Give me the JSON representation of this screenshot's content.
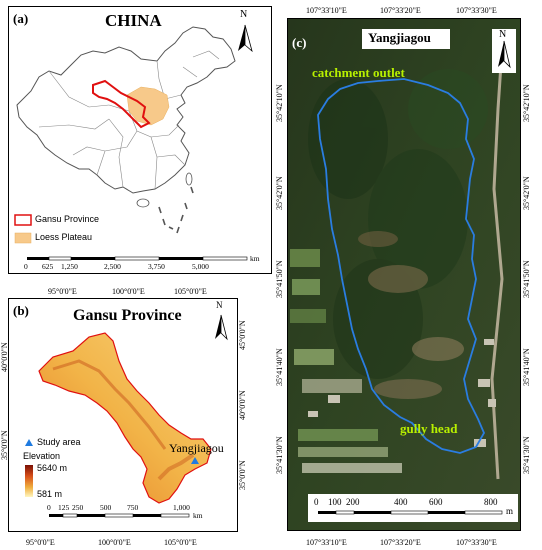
{
  "panel_a": {
    "label": "(a)",
    "title": "CHINA",
    "legend": [
      {
        "label": "Gansu Province",
        "symbol": "red-outline",
        "color": "#e01010"
      },
      {
        "label": "Loess Plateau",
        "symbol": "fill",
        "color": "#f7c98a"
      }
    ],
    "scalebar": {
      "ticks": [
        "0",
        "625",
        "1,250",
        "2,500",
        "3,750",
        "5,000"
      ],
      "unit": "km"
    },
    "north": "N"
  },
  "panel_b": {
    "label": "(b)",
    "title": "Gansu Province",
    "top_coords": [
      "95°0'0\"E",
      "100°0'0\"E",
      "105°0'0\"E"
    ],
    "bottom_coords": [
      "95°0'0\"E",
      "100°0'0\"E",
      "105°0'0\"E"
    ],
    "left_coords": [
      "40°0'0\"N",
      "35°0'0\"N"
    ],
    "right_coords": [
      "45°0'0\"N",
      "40°0'0\"N",
      "35°0'0\"N"
    ],
    "legend": {
      "study_area": "Study area",
      "elevation_title": "Elevation",
      "elevation_max": "5640 m",
      "elevation_min": "581 m"
    },
    "site_label": "Yangjiagou",
    "scalebar": {
      "ticks": [
        "0",
        "125",
        "250",
        "500",
        "750",
        "1,000"
      ],
      "unit": "km"
    },
    "north": "N"
  },
  "panel_c": {
    "label": "(c)",
    "title": "Yangjiagou",
    "top_coords": [
      "107°33'10\"E",
      "107°33'20\"E",
      "107°33'30\"E"
    ],
    "bottom_coords": [
      "107°33'10\"E",
      "107°33'20\"E",
      "107°33'30\"E"
    ],
    "left_coords": [
      "35°42'10\"N",
      "35°42'0\"N",
      "35°41'50\"N",
      "35°41'40\"N",
      "35°41'30\"N"
    ],
    "right_coords": [
      "35°42'10\"N",
      "35°42'0\"N",
      "35°41'50\"N",
      "35°41'40\"N",
      "35°41'30\"N"
    ],
    "annotations": {
      "outlet": "catchment outlet",
      "head": "gully head"
    },
    "scalebar": {
      "ticks": [
        "0",
        "100",
        "200",
        "400",
        "600",
        "800"
      ],
      "unit": "m"
    },
    "north": "N",
    "colors": {
      "boundary": "#2a7de1",
      "annotation": "#b8f000"
    }
  }
}
